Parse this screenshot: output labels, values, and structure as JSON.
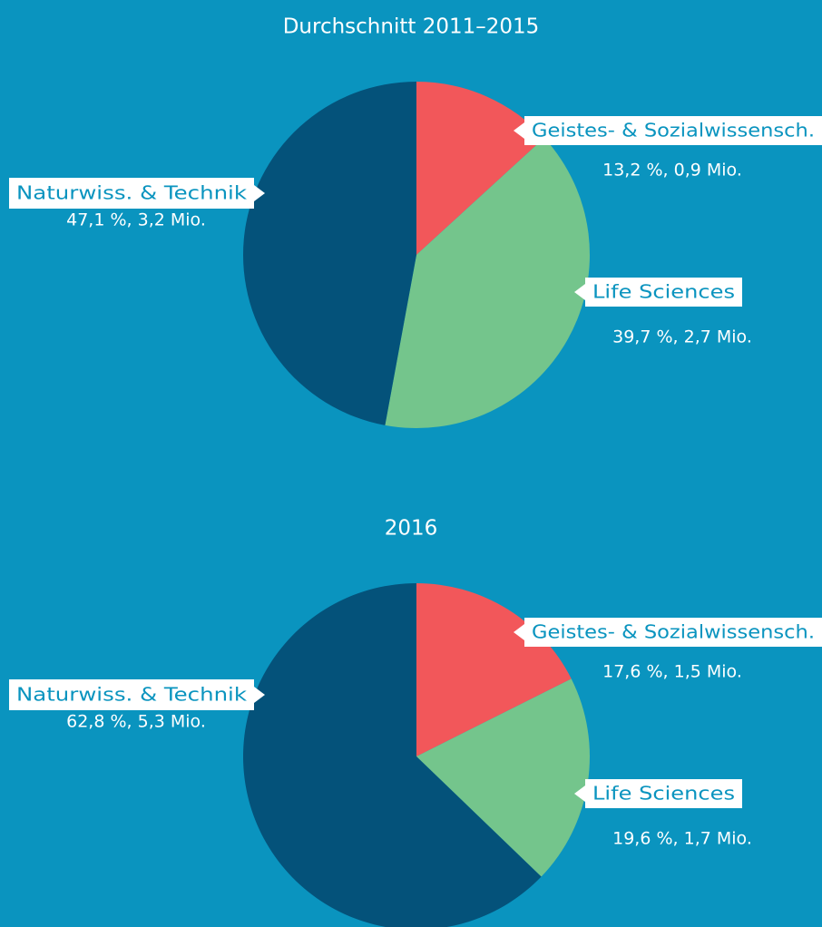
{
  "chart_data": [
    {
      "type": "pie",
      "title": "Durchschnitt 2011–2015",
      "categories": [
        "Geistes- & Sozialwissensch.",
        "Life Sciences",
        "Naturwiss. & Technik"
      ],
      "values": [
        13.2,
        39.7,
        47.1
      ],
      "value_labels": [
        "13,2 %, 0,9 Mio.",
        "39,7 %, 2,7 Mio.",
        "47,1 %, 3,2 Mio."
      ],
      "colors": [
        "#f2575a",
        "#74c58c",
        "#04527a"
      ]
    },
    {
      "type": "pie",
      "title": "2016",
      "categories": [
        "Geistes- & Sozialwissensch.",
        "Life Sciences",
        "Naturwiss. & Technik"
      ],
      "values": [
        17.6,
        19.6,
        62.8
      ],
      "value_labels": [
        "17,6 %, 1,5 Mio.",
        "19,6 %, 1,7 Mio.",
        "62,8 %, 5,3 Mio."
      ],
      "colors": [
        "#f2575a",
        "#74c58c",
        "#04527a"
      ]
    }
  ]
}
